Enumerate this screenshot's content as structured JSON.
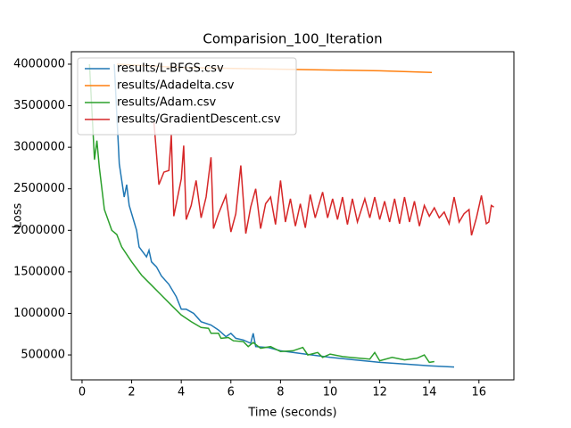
{
  "chart_data": {
    "type": "line",
    "title": "Comparision_100_Iteration",
    "xlabel": "Time (seconds)",
    "ylabel": "Loss",
    "xlim": [
      -0.43,
      17.41
    ],
    "ylim": [
      200000,
      4150000
    ],
    "xticks": [
      0,
      2,
      4,
      6,
      8,
      10,
      12,
      14,
      16
    ],
    "yticks": [
      500000,
      1000000,
      1500000,
      2000000,
      2500000,
      3000000,
      3500000,
      4000000
    ],
    "legend": "upper left",
    "series": [
      {
        "name": "results/L-BFGS.csv",
        "color": "#1f77b4",
        "x": [
          1.3,
          1.5,
          1.7,
          1.8,
          1.9,
          2.2,
          2.3,
          2.6,
          2.7,
          2.8,
          3.0,
          3.2,
          3.5,
          3.8,
          4.0,
          4.2,
          4.5,
          4.8,
          5.2,
          5.5,
          5.8,
          6.0,
          6.2,
          6.5,
          6.8,
          6.9,
          7.0,
          7.5,
          8,
          9,
          10,
          11,
          12,
          13,
          14,
          15
        ],
        "values": [
          4000000,
          2800000,
          2400000,
          2550000,
          2300000,
          2000000,
          1800000,
          1680000,
          1760000,
          1620000,
          1560000,
          1450000,
          1350000,
          1200000,
          1050000,
          1050000,
          1000000,
          900000,
          860000,
          800000,
          720000,
          760000,
          700000,
          680000,
          640000,
          760000,
          600000,
          590000,
          550000,
          510000,
          470000,
          440000,
          410000,
          390000,
          370000,
          355000
        ]
      },
      {
        "name": "results/Adadelta.csv",
        "color": "#ff7f0e",
        "x": [
          1.4,
          4,
          8,
          12,
          14.1
        ],
        "values": [
          4000000,
          3960000,
          3940000,
          3920000,
          3900000
        ]
      },
      {
        "name": "results/Adam.csv",
        "color": "#2ca02c",
        "x": [
          0.3,
          0.5,
          0.6,
          0.7,
          0.9,
          1.2,
          1.4,
          1.6,
          2.0,
          2.4,
          2.8,
          3.2,
          3.6,
          4.0,
          4.4,
          4.8,
          5.1,
          5.2,
          5.5,
          5.6,
          5.9,
          6.1,
          6.5,
          6.7,
          6.9,
          7.2,
          7.6,
          8.0,
          8.5,
          8.9,
          9.1,
          9.5,
          9.7,
          10,
          10.5,
          10.8,
          11.2,
          11.6,
          11.8,
          12,
          12.5,
          13,
          13.5,
          13.8,
          14,
          14.2
        ],
        "values": [
          4000000,
          2850000,
          3080000,
          2750000,
          2250000,
          2000000,
          1950000,
          1800000,
          1620000,
          1460000,
          1340000,
          1220000,
          1100000,
          980000,
          900000,
          830000,
          820000,
          760000,
          760000,
          700000,
          710000,
          670000,
          660000,
          600000,
          650000,
          580000,
          600000,
          540000,
          550000,
          590000,
          500000,
          530000,
          470000,
          510000,
          480000,
          470000,
          460000,
          450000,
          530000,
          430000,
          470000,
          440000,
          460000,
          500000,
          410000,
          420000
        ]
      },
      {
        "name": "results/GradientDescent.csv",
        "color": "#d62728",
        "x": [
          2.9,
          3.1,
          3.3,
          3.5,
          3.6,
          3.7,
          4.0,
          4.1,
          4.2,
          4.4,
          4.6,
          4.8,
          5.0,
          5.2,
          5.3,
          5.5,
          5.8,
          6.0,
          6.2,
          6.4,
          6.6,
          6.8,
          7.0,
          7.2,
          7.4,
          7.6,
          7.8,
          8.0,
          8.2,
          8.4,
          8.6,
          8.8,
          9.0,
          9.2,
          9.4,
          9.7,
          9.9,
          10.1,
          10.3,
          10.5,
          10.7,
          10.9,
          11.1,
          11.4,
          11.6,
          11.8,
          12.0,
          12.2,
          12.4,
          12.6,
          12.8,
          13.0,
          13.2,
          13.4,
          13.6,
          13.8,
          14.0,
          14.2,
          14.4,
          14.6,
          14.8,
          15.0,
          15.2,
          15.4,
          15.6,
          15.7,
          15.9,
          16.1,
          16.3,
          16.4,
          16.5,
          16.6
        ],
        "values": [
          3300000,
          2550000,
          2700000,
          2720000,
          3150000,
          2170000,
          2620000,
          3020000,
          2130000,
          2300000,
          2600000,
          2150000,
          2400000,
          2880000,
          2020000,
          2200000,
          2420000,
          1980000,
          2200000,
          2780000,
          1960000,
          2280000,
          2500000,
          2020000,
          2320000,
          2400000,
          2070000,
          2600000,
          2100000,
          2380000,
          2050000,
          2320000,
          2030000,
          2430000,
          2150000,
          2460000,
          2150000,
          2380000,
          2130000,
          2400000,
          2070000,
          2380000,
          2100000,
          2380000,
          2150000,
          2400000,
          2130000,
          2350000,
          2100000,
          2380000,
          2080000,
          2400000,
          2100000,
          2350000,
          2050000,
          2300000,
          2170000,
          2270000,
          2150000,
          2220000,
          2080000,
          2400000,
          2100000,
          2200000,
          2250000,
          1940000,
          2150000,
          2420000,
          2080000,
          2100000,
          2300000,
          2280000
        ]
      }
    ]
  }
}
